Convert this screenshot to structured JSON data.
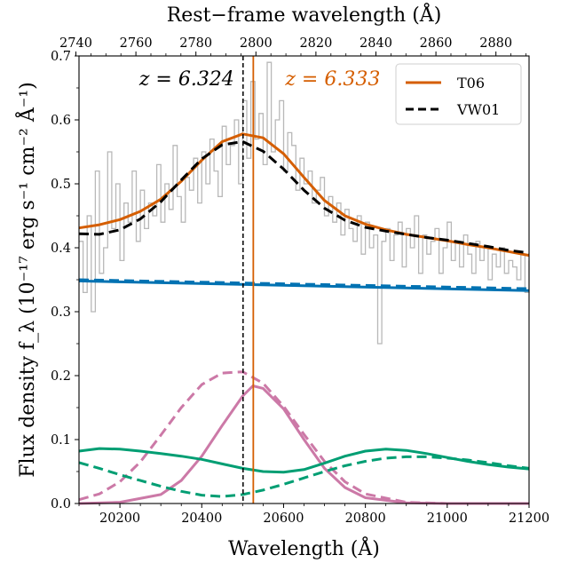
{
  "chart_data": {
    "type": "line",
    "xlabel": "Wavelength (Å)",
    "ylabel": "Flux density f_λ (10⁻¹⁷ erg s⁻¹ cm⁻² Å⁻¹)",
    "top_xlabel": "Rest−frame wavelength (Å)",
    "xlim": [
      20100,
      21200
    ],
    "ylim": [
      0.0,
      0.7
    ],
    "xticks": [
      20200,
      20400,
      20600,
      20800,
      21000,
      21200
    ],
    "xtick_labels": [
      "20200",
      "20400",
      "20600",
      "20800",
      "21000",
      "21200"
    ],
    "yticks": [
      0.0,
      0.1,
      0.2,
      0.3,
      0.4,
      0.5,
      0.6,
      0.7
    ],
    "ytick_labels": [
      "0.0",
      "0.1",
      "0.2",
      "0.3",
      "0.4",
      "0.5",
      "0.6",
      "0.7"
    ],
    "top_xticks": [
      2740,
      2760,
      2780,
      2800,
      2820,
      2840,
      2860,
      2880
    ],
    "top_xtick_labels": [
      "2740",
      "2760",
      "2780",
      "2800",
      "2820",
      "2840",
      "2860",
      "2880"
    ],
    "rest_frame_redshift": 6.333,
    "grid": false,
    "legend_position": "top-right",
    "legend": [
      {
        "name": "T06",
        "color": "#d55e00",
        "dash": "solid"
      },
      {
        "name": "VW01",
        "color": "#000000",
        "dash": "dashed"
      }
    ],
    "annotations": [
      {
        "text": "z = 6.324",
        "x": 20501,
        "color": "#000000",
        "line": "dashed"
      },
      {
        "text": "z = 6.333",
        "x": 20526,
        "color": "#d55e00",
        "line": "solid"
      }
    ],
    "observed_spectrum": {
      "color": "#b8b8b8",
      "x": [
        20100,
        20110,
        20120,
        20130,
        20140,
        20150,
        20160,
        20170,
        20180,
        20190,
        20200,
        20210,
        20220,
        20230,
        20240,
        20250,
        20260,
        20270,
        20280,
        20290,
        20300,
        20310,
        20320,
        20330,
        20340,
        20350,
        20360,
        20370,
        20380,
        20390,
        20400,
        20410,
        20420,
        20430,
        20440,
        20450,
        20460,
        20470,
        20480,
        20490,
        20500,
        20510,
        20520,
        20530,
        20540,
        20550,
        20560,
        20570,
        20580,
        20590,
        20600,
        20610,
        20620,
        20630,
        20640,
        20650,
        20660,
        20670,
        20680,
        20690,
        20700,
        20710,
        20720,
        20730,
        20740,
        20750,
        20760,
        20770,
        20780,
        20790,
        20800,
        20810,
        20820,
        20830,
        20840,
        20850,
        20860,
        20870,
        20880,
        20890,
        20900,
        20910,
        20920,
        20930,
        20940,
        20950,
        20960,
        20970,
        20980,
        20990,
        21000,
        21010,
        21020,
        21030,
        21040,
        21050,
        21060,
        21070,
        21080,
        21090,
        21100,
        21110,
        21120,
        21130,
        21140,
        21150,
        21160,
        21170,
        21180,
        21190,
        21200
      ],
      "y": [
        0.41,
        0.33,
        0.45,
        0.3,
        0.52,
        0.36,
        0.4,
        0.55,
        0.43,
        0.5,
        0.38,
        0.47,
        0.44,
        0.52,
        0.41,
        0.49,
        0.43,
        0.47,
        0.45,
        0.53,
        0.44,
        0.5,
        0.46,
        0.56,
        0.48,
        0.44,
        0.51,
        0.49,
        0.54,
        0.47,
        0.55,
        0.5,
        0.57,
        0.52,
        0.48,
        0.59,
        0.53,
        0.56,
        0.6,
        0.5,
        0.63,
        0.54,
        0.66,
        0.57,
        0.61,
        0.53,
        0.69,
        0.55,
        0.6,
        0.63,
        0.52,
        0.58,
        0.56,
        0.49,
        0.54,
        0.5,
        0.52,
        0.47,
        0.49,
        0.51,
        0.45,
        0.48,
        0.44,
        0.47,
        0.42,
        0.46,
        0.43,
        0.41,
        0.45,
        0.39,
        0.44,
        0.4,
        0.42,
        0.25,
        0.41,
        0.43,
        0.38,
        0.42,
        0.44,
        0.37,
        0.43,
        0.4,
        0.45,
        0.36,
        0.42,
        0.39,
        0.41,
        0.43,
        0.36,
        0.4,
        0.44,
        0.38,
        0.41,
        0.37,
        0.42,
        0.39,
        0.36,
        0.41,
        0.38,
        0.4,
        0.35,
        0.39,
        0.37,
        0.4,
        0.36,
        0.38,
        0.37,
        0.35,
        0.39,
        0.33,
        0.38
      ]
    },
    "series": [
      {
        "name": "T06",
        "role": "total",
        "color": "#d55e00",
        "dash": "solid",
        "x": [
          20100,
          20150,
          20200,
          20250,
          20300,
          20350,
          20400,
          20450,
          20500,
          20550,
          20600,
          20650,
          20700,
          20750,
          20800,
          20850,
          20900,
          20950,
          21000,
          21050,
          21100,
          21150,
          21200
        ],
        "values": [
          0.431,
          0.436,
          0.444,
          0.457,
          0.476,
          0.504,
          0.537,
          0.566,
          0.578,
          0.572,
          0.547,
          0.51,
          0.474,
          0.45,
          0.437,
          0.428,
          0.421,
          0.416,
          0.411,
          0.405,
          0.4,
          0.394,
          0.388
        ]
      },
      {
        "name": "VW01",
        "role": "total",
        "color": "#000000",
        "dash": "dashed",
        "x": [
          20100,
          20150,
          20200,
          20250,
          20300,
          20350,
          20400,
          20450,
          20500,
          20550,
          20600,
          20650,
          20700,
          20750,
          20800,
          20850,
          20900,
          20950,
          21000,
          21050,
          21100,
          21150,
          21200
        ],
        "values": [
          0.422,
          0.421,
          0.428,
          0.445,
          0.472,
          0.506,
          0.539,
          0.561,
          0.566,
          0.551,
          0.523,
          0.49,
          0.462,
          0.443,
          0.432,
          0.426,
          0.421,
          0.416,
          0.412,
          0.407,
          0.402,
          0.396,
          0.392
        ]
      },
      {
        "role": "continuum T06",
        "color": "#0072b2",
        "dash": "solid",
        "x": [
          20100,
          21200
        ],
        "values": [
          0.348,
          0.333
        ]
      },
      {
        "role": "continuum VW01",
        "color": "#0072b2",
        "dash": "dashed",
        "x": [
          20100,
          21200
        ],
        "values": [
          0.35,
          0.336
        ]
      },
      {
        "role": "Mg II T06",
        "color": "#cc79a7",
        "dash": "solid",
        "x": [
          20100,
          20200,
          20300,
          20350,
          20400,
          20450,
          20500,
          20525,
          20550,
          20600,
          20650,
          20700,
          20750,
          20800,
          20900,
          21000,
          21200
        ],
        "values": [
          0.0,
          0.002,
          0.014,
          0.036,
          0.074,
          0.122,
          0.168,
          0.184,
          0.18,
          0.148,
          0.1,
          0.055,
          0.025,
          0.009,
          0.001,
          0.0,
          0.0
        ]
      },
      {
        "role": "Mg II VW01",
        "color": "#cc79a7",
        "dash": "dashed",
        "x": [
          20100,
          20150,
          20200,
          20250,
          20300,
          20350,
          20400,
          20450,
          20500,
          20550,
          20600,
          20650,
          20700,
          20750,
          20800,
          20900,
          21000,
          21200
        ],
        "values": [
          0.006,
          0.015,
          0.034,
          0.065,
          0.107,
          0.15,
          0.186,
          0.204,
          0.206,
          0.188,
          0.152,
          0.108,
          0.066,
          0.034,
          0.015,
          0.002,
          0.0,
          0.0
        ]
      },
      {
        "role": "Fe II T06",
        "color": "#009e73",
        "dash": "solid",
        "x": [
          20100,
          20150,
          20200,
          20250,
          20300,
          20350,
          20400,
          20450,
          20500,
          20550,
          20600,
          20650,
          20700,
          20750,
          20800,
          20850,
          20900,
          20950,
          21000,
          21050,
          21100,
          21150,
          21200
        ],
        "values": [
          0.082,
          0.086,
          0.085,
          0.082,
          0.078,
          0.074,
          0.069,
          0.062,
          0.055,
          0.05,
          0.049,
          0.053,
          0.063,
          0.074,
          0.082,
          0.085,
          0.083,
          0.078,
          0.072,
          0.066,
          0.061,
          0.057,
          0.054
        ]
      },
      {
        "role": "Fe II VW01",
        "color": "#009e73",
        "dash": "dashed",
        "x": [
          20100,
          20150,
          20200,
          20250,
          20300,
          20350,
          20400,
          20450,
          20500,
          20550,
          20600,
          20650,
          20700,
          20750,
          20800,
          20850,
          20900,
          20950,
          21000,
          21050,
          21100,
          21150,
          21200
        ],
        "values": [
          0.064,
          0.055,
          0.045,
          0.036,
          0.027,
          0.019,
          0.013,
          0.011,
          0.014,
          0.021,
          0.03,
          0.04,
          0.05,
          0.059,
          0.066,
          0.071,
          0.073,
          0.073,
          0.071,
          0.068,
          0.064,
          0.059,
          0.055
        ]
      }
    ]
  }
}
